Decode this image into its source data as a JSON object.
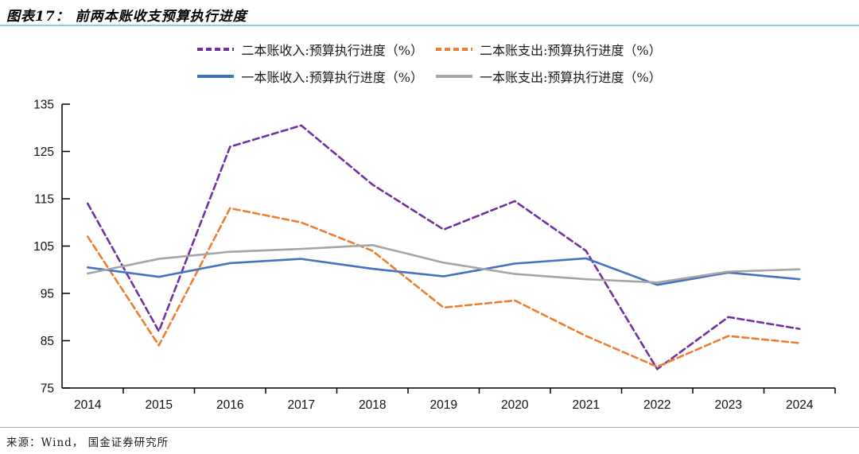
{
  "header": {
    "title": "图表17： 前两本账收支预算执行进度"
  },
  "source": {
    "label": "来源：Wind， 国金证券研究所"
  },
  "colors": {
    "title_rule": "#9DC3E6",
    "footer_rule": "#A3B2C8",
    "axis": "#000000"
  },
  "chart_data": {
    "type": "line",
    "title": "前两本账收支预算执行进度",
    "xlabel": "",
    "ylabel": "",
    "categories": [
      "2014",
      "2015",
      "2016",
      "2017",
      "2018",
      "2019",
      "2020",
      "2021",
      "2022",
      "2023",
      "2024"
    ],
    "series": [
      {
        "name": "二本账收入:预算执行进度（%）",
        "color": "#7030A0",
        "dash": true,
        "values": [
          114,
          87,
          126,
          130.5,
          118,
          108.5,
          114.5,
          104,
          79,
          90,
          87.5
        ]
      },
      {
        "name": "二本账支出:预算执行进度（%）",
        "color": "#ED7D31",
        "dash": true,
        "values": [
          107,
          84,
          113,
          110,
          104,
          92,
          93.5,
          86,
          79.5,
          86,
          84.5
        ]
      },
      {
        "name": "一本账收入:预算执行进度（%）",
        "color": "#4472C4",
        "dash": false,
        "values": [
          100.5,
          98.5,
          101.4,
          102.3,
          100.2,
          98.6,
          101.3,
          102.4,
          96.8,
          99.4,
          98
        ]
      },
      {
        "name": "一本账支出:预算执行进度（%）",
        "color": "#A5A5A5",
        "dash": false,
        "values": [
          99.2,
          102.3,
          103.8,
          104.4,
          105.2,
          101.5,
          99.1,
          98,
          97.3,
          99.6,
          100.1
        ]
      }
    ],
    "ylim": [
      75,
      135
    ],
    "ytick_step": 10,
    "yticks": [
      75,
      85,
      95,
      105,
      115,
      125,
      135
    ],
    "grid": false,
    "legend_position": "top"
  }
}
